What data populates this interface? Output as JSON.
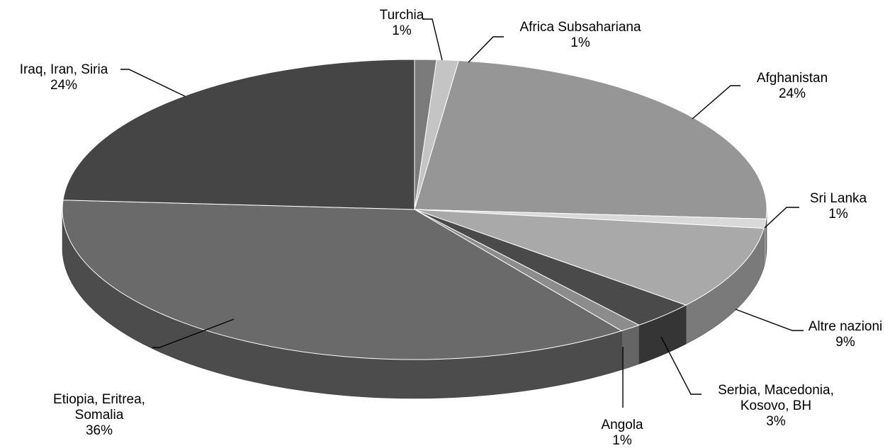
{
  "chart_data": {
    "type": "pie",
    "title": "",
    "style": "3d",
    "slices": [
      {
        "label": "Turchia",
        "value": 1,
        "percent_label": "1%",
        "color": "#7b7b7b"
      },
      {
        "label": "Africa Subsahariana",
        "value": 1,
        "percent_label": "1%",
        "color": "#c4c4c4"
      },
      {
        "label": "Afghanistan",
        "value": 24,
        "percent_label": "24%",
        "color": "#969696"
      },
      {
        "label": "Sri Lanka",
        "value": 1,
        "percent_label": "1%",
        "color": "#d9d9d9"
      },
      {
        "label": "Altre nazioni",
        "value": 9,
        "percent_label": "9%",
        "color": "#a9a9a9"
      },
      {
        "label": "Serbia, Macedonia, Kosovo, BH",
        "value": 3,
        "percent_label": "3%",
        "color": "#4a4a4a"
      },
      {
        "label": "Angola",
        "value": 1,
        "percent_label": "1%",
        "color": "#8c8c8c"
      },
      {
        "label": "Etiopia, Eritrea, Somalia",
        "value": 36,
        "percent_label": "36%",
        "color": "#6a6a6a"
      },
      {
        "label": "Iraq, Iran, Siria",
        "value": 24,
        "percent_label": "24%",
        "color": "#454545"
      }
    ]
  }
}
